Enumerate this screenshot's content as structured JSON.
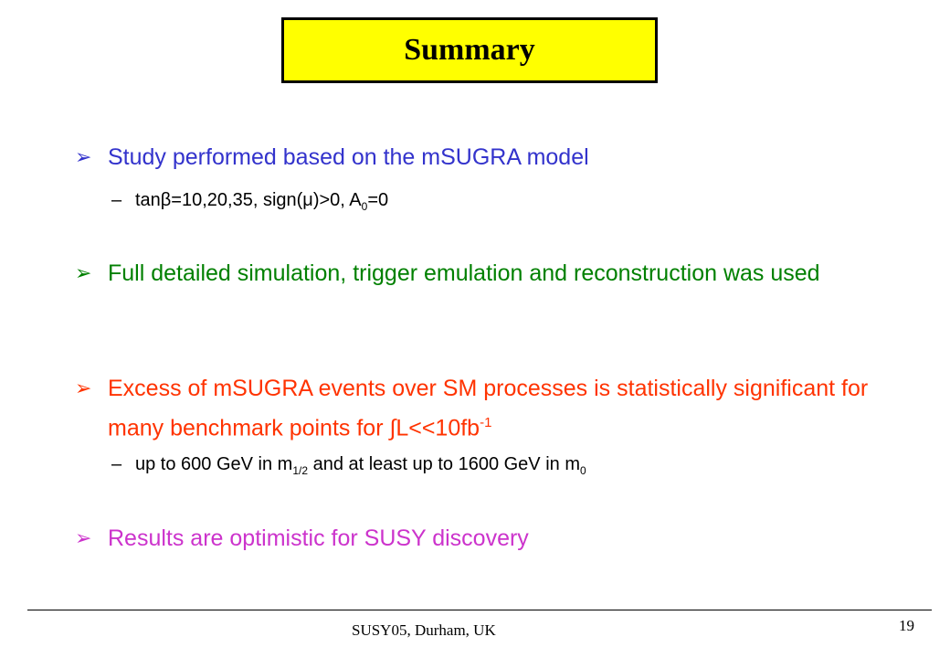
{
  "title": "Summary",
  "bullet_glyph": "➢",
  "dash_glyph": "–",
  "colors": {
    "title_bg": "#ffff00",
    "blue": "#3333cc",
    "green": "#008000",
    "red": "#ff3300",
    "magenta": "#cc33cc"
  },
  "bullets": [
    {
      "text": "Study performed based on the mSUGRA model"
    },
    {
      "text": "Full detailed simulation, trigger emulation and reconstruction was used"
    },
    {
      "text_a": "Excess of mSUGRA events over SM processes is statistically significant for many benchmark points for ∫L<<10fb",
      "text_sup": "-1"
    },
    {
      "text": "Results are optimistic for SUSY discovery"
    }
  ],
  "sub1": {
    "a": "tanβ=10,20,35, sign(μ)>0, A",
    "sub": "0",
    "b": "=0"
  },
  "sub2": {
    "a": "up to 600 GeV in m",
    "sub1": "1/2",
    "b": " and at least up to 1600 GeV in m",
    "sub2": "0"
  },
  "footer": {
    "text": "SUSY05, Durham, UK",
    "page": "19"
  }
}
